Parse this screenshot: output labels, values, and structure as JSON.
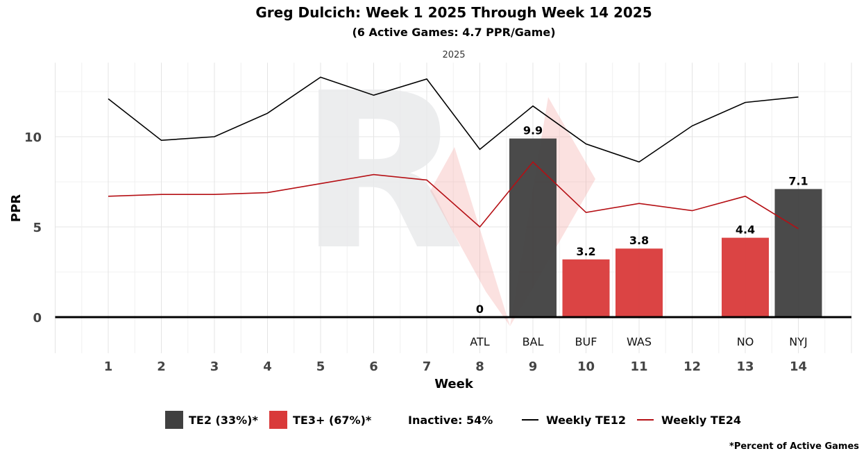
{
  "chart_data": {
    "type": "bar",
    "title": "Greg Dulcich: Week 1 2025 Through Week 14 2025",
    "subtitle": "(6 Active Games: 4.7 PPR/Game)",
    "facet_label": "2025",
    "xlabel": "Week",
    "ylabel": "PPR",
    "xlim": [
      0,
      15
    ],
    "ylim": [
      -2,
      14.1
    ],
    "y_ticks": [
      0,
      5,
      10
    ],
    "x_ticks": [
      1,
      2,
      3,
      4,
      5,
      6,
      7,
      8,
      9,
      10,
      11,
      12,
      13,
      14
    ],
    "grid": true,
    "legend_placement": "bottom",
    "footnote": "*Percent of Active Games",
    "colors": {
      "TE2": "#404040",
      "TE3+": "#d93a3a",
      "TE12": "#000000",
      "TE24": "#b50f14"
    },
    "bars": [
      {
        "week": 8,
        "opponent": "ATL",
        "value": 0,
        "label": "0",
        "tier": "TE3+"
      },
      {
        "week": 9,
        "opponent": "BAL",
        "value": 9.9,
        "label": "9.9",
        "tier": "TE2"
      },
      {
        "week": 10,
        "opponent": "BUF",
        "value": 3.2,
        "label": "3.2",
        "tier": "TE3+"
      },
      {
        "week": 11,
        "opponent": "WAS",
        "value": 3.8,
        "label": "3.8",
        "tier": "TE3+"
      },
      {
        "week": 13,
        "opponent": "NO",
        "value": 4.4,
        "label": "4.4",
        "tier": "TE3+"
      },
      {
        "week": 14,
        "opponent": "NYJ",
        "value": 7.1,
        "label": "7.1",
        "tier": "TE2"
      }
    ],
    "series": [
      {
        "name": "Weekly TE12",
        "x": [
          1,
          2,
          3,
          4,
          5,
          6,
          7,
          8,
          9,
          10,
          11,
          12,
          13,
          14
        ],
        "values": [
          12.1,
          9.8,
          10.0,
          11.3,
          13.3,
          12.3,
          13.2,
          9.3,
          11.7,
          9.6,
          8.6,
          10.6,
          11.9,
          12.2
        ]
      },
      {
        "name": "Weekly TE24",
        "x": [
          1,
          2,
          3,
          4,
          5,
          6,
          7,
          8,
          9,
          10,
          11,
          12,
          13,
          14
        ],
        "values": [
          6.7,
          6.8,
          6.8,
          6.9,
          7.4,
          7.9,
          7.6,
          5.0,
          8.6,
          5.8,
          6.3,
          5.9,
          6.7,
          4.9
        ]
      }
    ],
    "legend": [
      {
        "key": "TE2",
        "label": "TE2 (33%)*",
        "kind": "box"
      },
      {
        "key": "TE3+",
        "label": "TE3+ (67%)*",
        "kind": "box"
      },
      {
        "key": "inactive",
        "label": "Inactive: 54%",
        "kind": "text"
      },
      {
        "key": "TE12",
        "label": "Weekly TE12",
        "kind": "line"
      },
      {
        "key": "TE24",
        "label": "Weekly TE24",
        "kind": "line"
      }
    ]
  }
}
